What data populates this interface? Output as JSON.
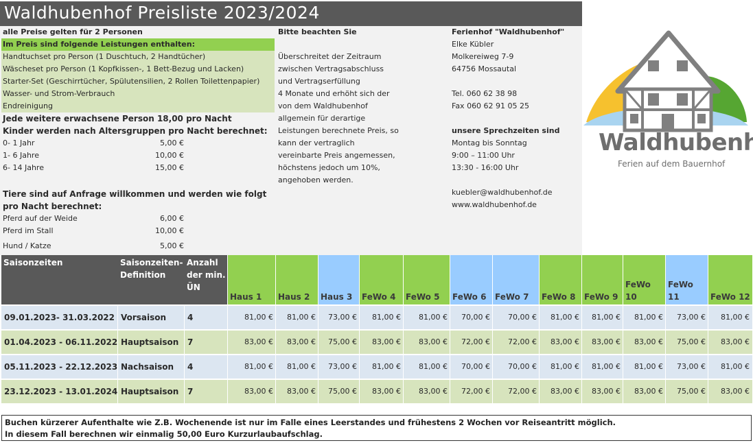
{
  "title": "Waldhubenhof Preisliste 2023/2024",
  "left": {
    "all_prices": "alle Preise gelten für 2 Personen",
    "included_head": "Im Preis sind folgende Leistungen enthalten:",
    "included": [
      "Handtuchset pro Person (1 Duschtuch, 2 Handtücher)",
      "Wäscheset pro Person (1 Kopfkissen-, 1 Bett-Bezug und Lacken)",
      "Starter-Set (Geschirrtücher, Spülutensilien, 2 Rollen Toilettenpapier)",
      "Wasser- und Strom-Verbrauch",
      "Endreinigung"
    ],
    "extra_person": "Jede weitere erwachsene Person 18,00 pro Nacht",
    "children_head": "Kinder werden nach Altersgruppen pro Nacht berechnet:",
    "children": [
      {
        "label": "0- 1 Jahr",
        "price": "5,00 €"
      },
      {
        "label": "1- 6 Jahre",
        "price": "10,00 €"
      },
      {
        "label": "6- 14 Jahre",
        "price": "15,00 €"
      }
    ],
    "animals_head_1": "Tiere sind auf Anfrage willkommen und werden wie folgt",
    "animals_head_2": "pro Nacht berechnet:",
    "animals": [
      {
        "label": "Pferd auf der Weide",
        "price": "6,00 €"
      },
      {
        "label": "Pferd im Stall",
        "price": "10,00 €"
      },
      {
        "label": "Hund / Katze",
        "price": "5,00 €"
      }
    ]
  },
  "middle": {
    "head": "Bitte beachten Sie",
    "lines": [
      "Überschreitet der Zeitraum",
      "zwischen Vertragsabschluss",
      "und Vertragserfüllung",
      "4 Monate und erhöht sich der",
      "von dem Waldhubenhof",
      "allgemein für derartige",
      "Leistungen berechnete Preis, so",
      "kann der vertraglich",
      "vereinbarte Preis  angemessen,",
      "höchstens  jedoch um 10%,",
      "angehoben werden."
    ]
  },
  "contact": {
    "name": "Ferienhof \"Waldhubenhof\"",
    "person": "Elke Kübler",
    "street": "Molkereiweg 7-9",
    "city": "64756 Mossautal",
    "tel": "Tel. 060 62 38 98",
    "fax": "Fax 060 62 91 05 25",
    "hours_head": "unsere Sprechzeiten sind",
    "hours": [
      "Montag bis Sonntag",
      "9:00 – 11:00 Uhr",
      "13:30 - 16:00 Uhr"
    ],
    "email": "kuebler@waldhubenhof.de",
    "web": "www.waldhubenhof.de"
  },
  "logo": {
    "name": "Waldhubenhof",
    "tagline": "Ferien auf dem Bauernhof",
    "colors": {
      "green": "#56a632",
      "yellow": "#f6c12e",
      "blue": "#a9d4f0",
      "house": "#808080"
    }
  },
  "table": {
    "col_season": "Saisonzeiten",
    "col_def": "Saisonzeiten-Definition",
    "col_def_lines": [
      "Saisonzeiten-",
      "Definition"
    ],
    "col_min_lines": [
      "Anzahl",
      "der min.",
      "ÜN"
    ],
    "units": [
      {
        "label": "Haus 1",
        "color": "green"
      },
      {
        "label": "Haus 2",
        "color": "green"
      },
      {
        "label": "Haus 3",
        "color": "blue"
      },
      {
        "label": "FeWo 4",
        "color": "green"
      },
      {
        "label": "FeWo 5",
        "color": "green"
      },
      {
        "label": "FeWo 6",
        "color": "blue"
      },
      {
        "label": "FeWo 7",
        "color": "blue"
      },
      {
        "label": "FeWo 8",
        "color": "green"
      },
      {
        "label": "FeWo 9",
        "color": "green"
      },
      {
        "label": "FeWo 10",
        "color": "green"
      },
      {
        "label": "FeWo 11",
        "color": "blue"
      },
      {
        "label": "FeWo 12",
        "color": "green"
      }
    ],
    "rows": [
      {
        "period": "09.01.2023- 31.03.2022",
        "season": "Vorsaison",
        "min": "4",
        "prices": [
          "81,00 €",
          "81,00 €",
          "73,00 €",
          "81,00 €",
          "81,00 €",
          "70,00 €",
          "70,00 €",
          "81,00 €",
          "81,00 €",
          "81,00 €",
          "73,00 €",
          "81,00 €"
        ]
      },
      {
        "period": "01.04.2023 - 06.11.2022",
        "season": "Hauptsaison",
        "min": "7",
        "prices": [
          "83,00 €",
          "83,00 €",
          "75,00 €",
          "83,00 €",
          "83,00 €",
          "72,00 €",
          "72,00 €",
          "83,00 €",
          "83,00 €",
          "83,00 €",
          "75,00 €",
          "83,00 €"
        ]
      },
      {
        "period": "05.11.2023 - 22.12.2023",
        "season": "Nachsaison",
        "min": "4",
        "prices": [
          "81,00 €",
          "81,00 €",
          "73,00 €",
          "81,00 €",
          "81,00 €",
          "70,00 €",
          "70,00 €",
          "81,00 €",
          "81,00 €",
          "81,00 €",
          "73,00 €",
          "81,00 €"
        ]
      },
      {
        "period": "23.12.2023 - 13.01.2024",
        "season": "Hauptsaison",
        "min": "7",
        "prices": [
          "83,00 €",
          "83,00 €",
          "75,00 €",
          "83,00 €",
          "83,00 €",
          "72,00 €",
          "72,00 €",
          "83,00 €",
          "83,00 €",
          "83,00 €",
          "75,00 €",
          "83,00 €"
        ]
      }
    ]
  },
  "footer": {
    "line1": "Buchen kürzerer Aufenthalte wie Z.B. Wochenende ist nur im Falle eines Leerstandes und frühestens  2 Wochen vor Reiseantritt möglich.",
    "line2": "In diesem Fall berechnen wir einmalig 50,00 Euro Kurzurlaubaufschlag."
  }
}
